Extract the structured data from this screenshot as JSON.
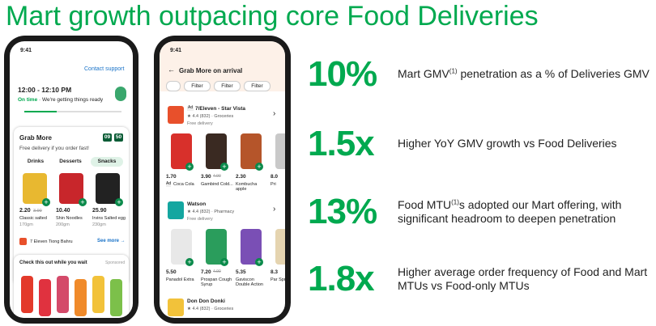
{
  "title": "Mart growth outpacing core Food Deliveries",
  "phone_left": {
    "time": "9:41",
    "contact": "Contact support",
    "eta": "12:00 - 12:10 PM",
    "status_on_time": "On time",
    "status_text": "· We're getting things ready",
    "card_title": "Grab More",
    "timer": [
      "09",
      "50"
    ],
    "card_subtitle": "Free delivery if you order fast!",
    "tabs": [
      "Drinks",
      "Desserts",
      "Snacks"
    ],
    "products": [
      {
        "price": "2.20",
        "old_price": "3.90",
        "name": "Classic salted",
        "size": "170gm"
      },
      {
        "price": "10.40",
        "name": "Shin Noodles",
        "size": "200gm"
      },
      {
        "price": "25.90",
        "name": "Irvins Salted egg",
        "size": "230gm"
      }
    ],
    "store": "7 Eleven Tiong Bahru",
    "see_more": "See more →",
    "promo_title": "Check this out while you wait",
    "promo_tag": "Sponsored"
  },
  "phone_right": {
    "time": "9:41",
    "header": "Grab More on arrival",
    "filters": [
      "Filter",
      "Filter",
      "Filter"
    ],
    "stores": [
      {
        "badge": "Ad",
        "name": "7/Eleven - Star Vista",
        "rating": "★ 4.4 (832) · Groceries",
        "delivery": "Free delivery",
        "items": [
          {
            "price": "1.70",
            "badge": "Ad",
            "name": "Coca Cola"
          },
          {
            "price": "3.90",
            "old_price": "4.90",
            "name": "Gambind Cold..."
          },
          {
            "price": "2.30",
            "name": "Kombucha apple"
          },
          {
            "price": "8.0",
            "name": "Pri"
          }
        ]
      },
      {
        "name": "Watson",
        "rating": "★ 4.4 (832) · Pharmacy",
        "delivery": "Free delivery",
        "items": [
          {
            "price": "5.50",
            "name": "Panadol Extra"
          },
          {
            "price": "7.20",
            "old_price": "4.90",
            "name": "Prospan Cough Syrup"
          },
          {
            "price": "5.35",
            "name": "Gaviscon Double Action"
          },
          {
            "price": "8.3",
            "name": "Par Spr"
          }
        ]
      },
      {
        "name": "Don Don Donki",
        "rating": "★ 4.4 (832) · Groceries"
      }
    ]
  },
  "stats": [
    {
      "figure": "10%",
      "description": [
        "Mart GMV",
        "(1)",
        " penetration as a % of Deliveries GMV"
      ]
    },
    {
      "figure": "1.5x",
      "description": [
        "Higher YoY GMV growth vs Food Deliveries"
      ]
    },
    {
      "figure": "13%",
      "description": [
        "Food MTU",
        "(1)",
        "s adopted our Mart offering, with significant headroom to deepen penetration"
      ]
    },
    {
      "figure": "1.8x",
      "description": [
        "Higher average order frequency of Food and Mart MTUs vs Food-only MTUs"
      ]
    }
  ]
}
